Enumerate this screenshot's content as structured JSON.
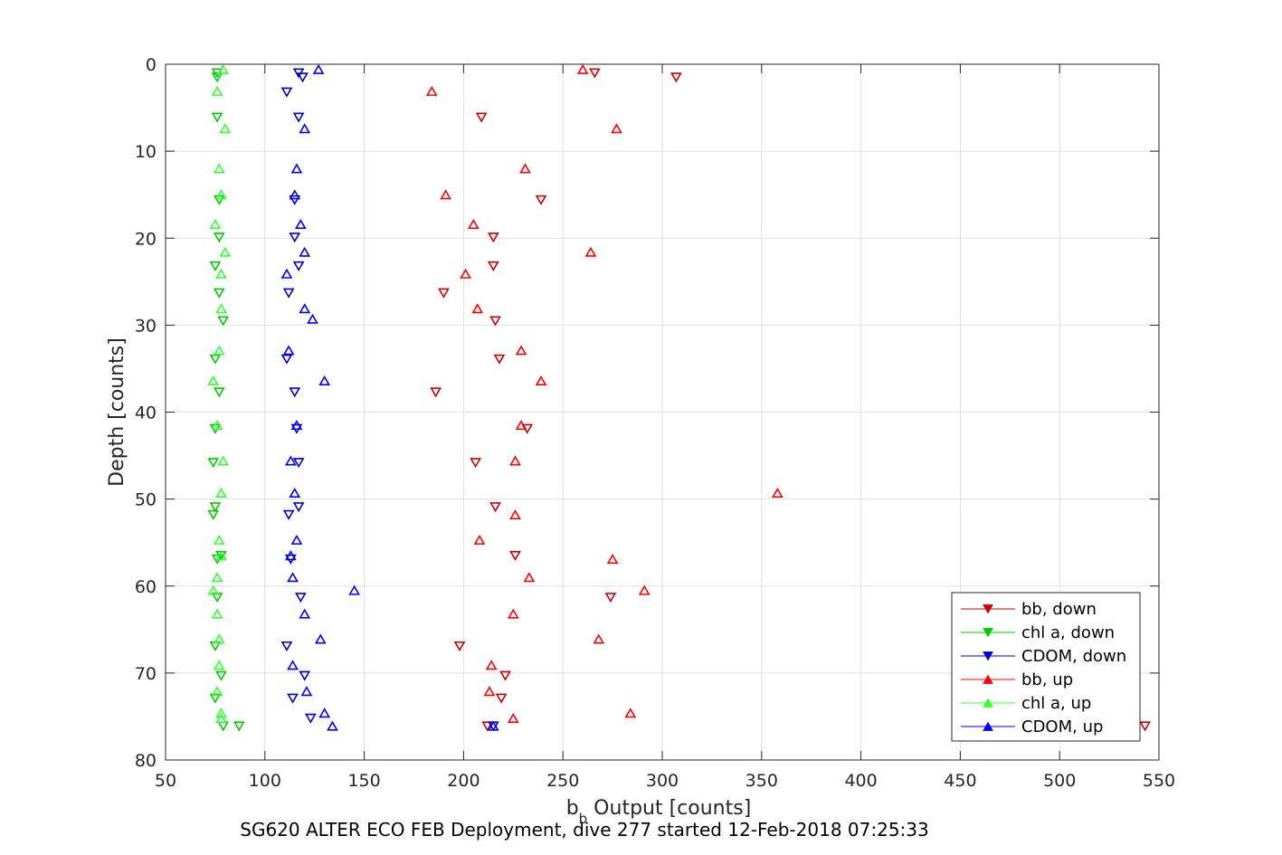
{
  "chart_data": {
    "type": "scatter",
    "xlabel_main": "b",
    "xlabel_sub": "b",
    "xlabel_rest": " Output [counts]",
    "ylabel": "Depth [counts]",
    "caption": "SG620 ALTER ECO FEB Deployment, dive 277 started 12-Feb-2018 07:25:33",
    "xlim": [
      50,
      550
    ],
    "ylim": [
      0,
      80
    ],
    "y_reversed": true,
    "grid": true,
    "legend_placement": "bottom-right",
    "x_ticks": [
      "50",
      "100",
      "150",
      "200",
      "250",
      "300",
      "350",
      "400",
      "450",
      "500",
      "550"
    ],
    "y_ticks": [
      "0",
      "10",
      "20",
      "30",
      "40",
      "50",
      "60",
      "70",
      "80"
    ],
    "series": [
      {
        "name": "bb, down",
        "color": "#cc0000",
        "marker": "triangle-down",
        "points": [
          [
            266,
            1.0
          ],
          [
            307,
            1.5
          ],
          [
            209,
            6.1
          ],
          [
            239,
            15.6
          ],
          [
            215,
            19.9
          ],
          [
            215,
            23.2
          ],
          [
            190,
            26.3
          ],
          [
            216,
            29.5
          ],
          [
            218,
            33.9
          ],
          [
            186,
            37.7
          ],
          [
            232,
            41.9
          ],
          [
            206,
            45.8
          ],
          [
            216,
            50.9
          ],
          [
            226,
            56.5
          ],
          [
            274,
            61.3
          ],
          [
            198,
            66.9
          ],
          [
            221,
            70.3
          ],
          [
            219,
            72.9
          ],
          [
            212,
            76.1
          ],
          [
            543,
            76.1
          ]
        ]
      },
      {
        "name": "chl a, down",
        "color": "#00cc00",
        "marker": "triangle-down",
        "points": [
          [
            76,
            1.0
          ],
          [
            76,
            1.5
          ],
          [
            76,
            6.1
          ],
          [
            77,
            15.6
          ],
          [
            77,
            19.9
          ],
          [
            75,
            23.2
          ],
          [
            77,
            26.3
          ],
          [
            79,
            29.5
          ],
          [
            75,
            33.9
          ],
          [
            77,
            37.7
          ],
          [
            75,
            41.9
          ],
          [
            74,
            45.8
          ],
          [
            75,
            50.9
          ],
          [
            74,
            51.8
          ],
          [
            78,
            56.5
          ],
          [
            76,
            56.9
          ],
          [
            76,
            61.3
          ],
          [
            75,
            66.9
          ],
          [
            78,
            70.3
          ],
          [
            75,
            72.9
          ],
          [
            79,
            76.1
          ],
          [
            87,
            76.1
          ]
        ]
      },
      {
        "name": "CDOM, down",
        "color": "#0000cc",
        "marker": "triangle-down",
        "points": [
          [
            117,
            1.0
          ],
          [
            119,
            1.5
          ],
          [
            111,
            3.2
          ],
          [
            117,
            6.1
          ],
          [
            115,
            15.6
          ],
          [
            115,
            19.9
          ],
          [
            117,
            23.2
          ],
          [
            112,
            26.3
          ],
          [
            111,
            33.9
          ],
          [
            115,
            37.7
          ],
          [
            116,
            41.9
          ],
          [
            117,
            45.8
          ],
          [
            117,
            50.9
          ],
          [
            112,
            51.8
          ],
          [
            113,
            56.9
          ],
          [
            118,
            61.3
          ],
          [
            111,
            66.9
          ],
          [
            120,
            70.3
          ],
          [
            114,
            72.9
          ],
          [
            123,
            75.2
          ],
          [
            215,
            76.1
          ]
        ]
      },
      {
        "name": "bb, up",
        "color": "#ff0000",
        "marker": "triangle-up",
        "points": [
          [
            260,
            0.6
          ],
          [
            184,
            3.1
          ],
          [
            277,
            7.4
          ],
          [
            231,
            12.0
          ],
          [
            191,
            15.0
          ],
          [
            205,
            18.4
          ],
          [
            264,
            21.6
          ],
          [
            201,
            24.1
          ],
          [
            207,
            28.1
          ],
          [
            229,
            32.9
          ],
          [
            239,
            36.4
          ],
          [
            229,
            41.5
          ],
          [
            226,
            45.6
          ],
          [
            358,
            49.3
          ],
          [
            226,
            51.8
          ],
          [
            208,
            54.7
          ],
          [
            275,
            56.9
          ],
          [
            233,
            59.0
          ],
          [
            291,
            60.5
          ],
          [
            225,
            63.2
          ],
          [
            268,
            66.1
          ],
          [
            214,
            69.1
          ],
          [
            213,
            72.1
          ],
          [
            284,
            74.6
          ],
          [
            225,
            75.2
          ]
        ]
      },
      {
        "name": "chl a, up",
        "color": "#33ff33",
        "marker": "triangle-up",
        "points": [
          [
            79,
            0.6
          ],
          [
            76,
            3.1
          ],
          [
            80,
            7.4
          ],
          [
            77,
            12.0
          ],
          [
            78,
            15.0
          ],
          [
            75,
            18.4
          ],
          [
            80,
            21.6
          ],
          [
            78,
            24.1
          ],
          [
            78,
            28.1
          ],
          [
            77,
            32.9
          ],
          [
            74,
            36.4
          ],
          [
            76,
            41.5
          ],
          [
            79,
            45.6
          ],
          [
            78,
            49.3
          ],
          [
            77,
            54.7
          ],
          [
            78,
            56.5
          ],
          [
            76,
            59.0
          ],
          [
            74,
            60.5
          ],
          [
            76,
            63.2
          ],
          [
            77,
            66.1
          ],
          [
            77,
            69.1
          ],
          [
            76,
            72.1
          ],
          [
            78,
            74.6
          ],
          [
            78,
            75.2
          ]
        ]
      },
      {
        "name": "CDOM, up",
        "color": "#0000ff",
        "marker": "triangle-up",
        "points": [
          [
            127,
            0.6
          ],
          [
            120,
            7.4
          ],
          [
            116,
            12.0
          ],
          [
            115,
            15.0
          ],
          [
            118,
            18.4
          ],
          [
            120,
            21.6
          ],
          [
            111,
            24.1
          ],
          [
            120,
            28.1
          ],
          [
            124,
            29.3
          ],
          [
            112,
            32.9
          ],
          [
            130,
            36.4
          ],
          [
            116,
            41.5
          ],
          [
            113,
            45.6
          ],
          [
            115,
            49.3
          ],
          [
            116,
            54.7
          ],
          [
            113,
            56.5
          ],
          [
            114,
            59.0
          ],
          [
            145,
            60.5
          ],
          [
            120,
            63.2
          ],
          [
            128,
            66.1
          ],
          [
            114,
            69.1
          ],
          [
            121,
            72.1
          ],
          [
            130,
            74.6
          ],
          [
            134,
            76.1
          ],
          [
            215,
            76.1
          ]
        ]
      }
    ]
  }
}
